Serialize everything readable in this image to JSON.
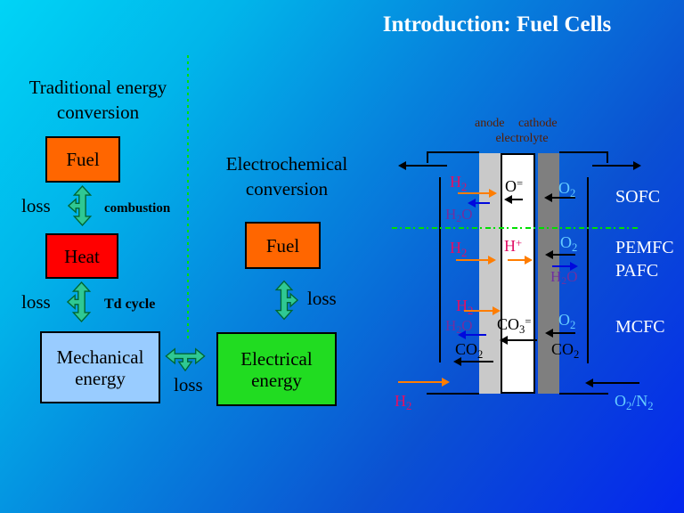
{
  "title": "Introduction: Fuel Cells",
  "traditional": {
    "heading": "Traditional energy conversion",
    "fuel_box": "Fuel",
    "heat_box": "Heat",
    "mech_box": "Mechanical energy",
    "loss_fuel_heat": "loss",
    "combustion": "combustion",
    "loss_heat_mech": "loss",
    "td_cycle": "Td cycle",
    "loss_mech": "loss"
  },
  "electrochemical": {
    "heading": "Electrochemical conversion",
    "fuel_box": "Fuel",
    "electrical_box": "Electrical energy",
    "loss_fuel_elec": "loss",
    "loss_elec": "loss"
  },
  "fuel_cell": {
    "anode_label": "anode",
    "cathode_label": "cathode",
    "electrolyte_label": "electrolyte",
    "sofc": {
      "name": "SOFC",
      "h2": "H_2",
      "h2o": "H_2O",
      "carrier": "O^=",
      "o2": "O_2"
    },
    "pemfc": {
      "name": "PEMFC",
      "name2": "PAFC",
      "h2": "H_2",
      "carrier": "H^+",
      "o2": "O_2",
      "h2o": "H_2O"
    },
    "mcfc": {
      "name": "MCFC",
      "h2": "H_2",
      "h2o": "H_2O",
      "carrier": "CO_3^=",
      "o2": "O_2",
      "co2_anode": "CO_2",
      "co2_cathode": "CO_2"
    },
    "inlet_left": "H_2",
    "inlet_right": "O_2/N_2"
  },
  "colors": {
    "background_top": "#00d4f6",
    "background_bottom": "#0426ee",
    "fuel_box": "#ff6600",
    "heat_box": "#ff0000",
    "mechanical_box": "#99ccff",
    "electrical_box": "#21dc21",
    "loss_arrow_fill": "#2fc893",
    "h2_text": "#e01065",
    "h2o_text": "#7030a0",
    "o2_text": "#66ccff",
    "anode_bar": "#c9c9c9",
    "cathode_bar": "#7f7f7f",
    "electrode_label_text": "#5a1e00",
    "divider_green": "#00e000",
    "title_text": "#ffffff"
  }
}
